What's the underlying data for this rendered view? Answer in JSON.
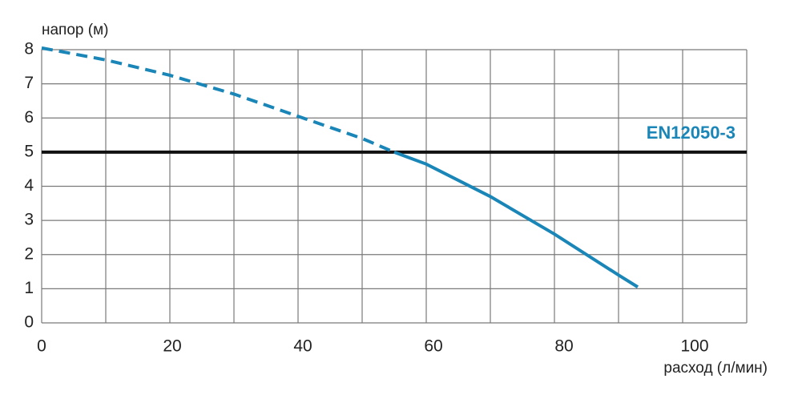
{
  "chart_data": {
    "type": "line",
    "y_label": "напор (м)",
    "x_label": "расход (л/мин)",
    "x": [
      0,
      10,
      20,
      30,
      40,
      50,
      55,
      60,
      70,
      80,
      90,
      93
    ],
    "series": [
      {
        "name": "EN12050-3",
        "color": "#1a86b8",
        "dashed": false,
        "values": [
          null,
          null,
          null,
          null,
          null,
          null,
          5.0,
          4.65,
          3.7,
          2.6,
          1.4,
          1.05
        ]
      },
      {
        "color": "#1a86b8",
        "dashed": true,
        "values": [
          8.05,
          7.7,
          7.25,
          6.7,
          6.05,
          5.4,
          5.0,
          null,
          null,
          null,
          null,
          null
        ]
      }
    ],
    "hline": 5,
    "xlim": [
      0,
      110
    ],
    "ylim": [
      0,
      8
    ],
    "xticks": [
      0,
      20,
      40,
      60,
      80,
      100
    ],
    "xminorticks": [
      10,
      30,
      50,
      70,
      90,
      110
    ],
    "yticks": [
      0,
      1,
      2,
      3,
      4,
      5,
      6,
      7,
      8
    ],
    "grid": true
  }
}
